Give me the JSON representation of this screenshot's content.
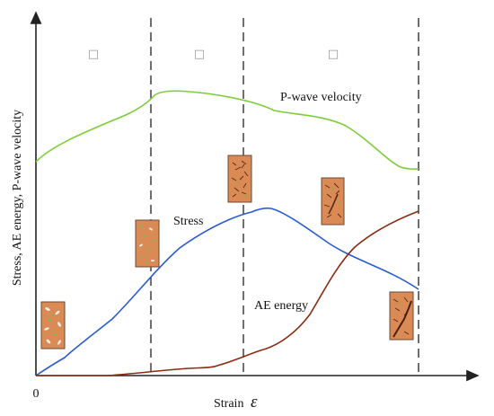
{
  "axes": {
    "y_label": "Stress, AE energy, P-wave velocity",
    "x_label": "Strain",
    "x_symbol": "ε",
    "origin_label": "0"
  },
  "stages": [
    "□",
    "□",
    "□"
  ],
  "curves": {
    "pwave": {
      "label": "P-wave velocity",
      "color": "#7ccc3a"
    },
    "stress": {
      "label": "Stress",
      "color": "#2a5ccc"
    },
    "ae": {
      "label": "AE energy",
      "color": "#8a2c10"
    }
  },
  "colors": {
    "specimen_fill": "#d98a55",
    "specimen_border": "#6b4a33",
    "crack": "#5a2a14",
    "grain_light": "#f2f0ea",
    "grain_green": "#8fb04a",
    "axis": "#222222",
    "divider": "#222222"
  }
}
